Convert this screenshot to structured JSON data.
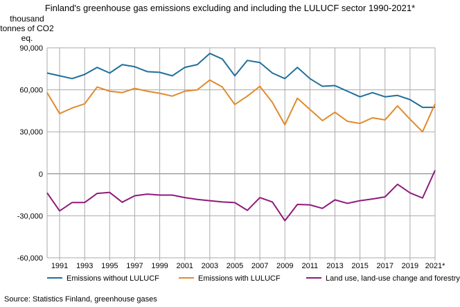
{
  "chart_data": {
    "type": "line",
    "title": "Finland's greenhouse gas emissions excluding and including the LULUCF sector 1990-2021*",
    "ylabel": "thousand tonnes of CO2 eq.",
    "xlabel": "",
    "source": "Source: Statistics Finland, greenhouse gases",
    "x": [
      1990,
      1991,
      1992,
      1993,
      1994,
      1995,
      1996,
      1997,
      1998,
      1999,
      2000,
      2001,
      2002,
      2003,
      2004,
      2005,
      2006,
      2007,
      2008,
      2009,
      2010,
      2011,
      2012,
      2013,
      2014,
      2015,
      2016,
      2017,
      2018,
      2019,
      2020,
      2021
    ],
    "x_tick_labels": [
      "1991",
      "1993",
      "1995",
      "1997",
      "1999",
      "2001",
      "2003",
      "2005",
      "2007",
      "2009",
      "2011",
      "2013",
      "2015",
      "2017",
      "2019",
      "2021*"
    ],
    "y_ticks": [
      90000,
      60000,
      30000,
      0,
      -30000,
      -60000
    ],
    "y_tick_labels": [
      "90,000",
      "60,000",
      "30,000",
      "0",
      "-30,000",
      "-60,000"
    ],
    "ylim": [
      -60000,
      90000
    ],
    "grid": true,
    "legend_position": "bottom",
    "series": [
      {
        "name": "Emissions without LULUCF",
        "color": "#1f6f9a",
        "values": [
          72000,
          70000,
          68000,
          71000,
          76000,
          72000,
          78000,
          76500,
          73000,
          72500,
          70000,
          76000,
          78000,
          86000,
          82000,
          70000,
          81000,
          79500,
          72000,
          68000,
          76000,
          68000,
          62500,
          63000,
          59000,
          55000,
          58000,
          55000,
          56000,
          53000,
          47500,
          47500
        ]
      },
      {
        "name": "Emissions with LULUCF",
        "color": "#e08a2c",
        "values": [
          58000,
          43000,
          47000,
          50000,
          62000,
          59000,
          58000,
          61000,
          59000,
          57500,
          55500,
          59000,
          60000,
          67000,
          62000,
          49500,
          55500,
          62500,
          51000,
          35000,
          54000,
          46000,
          38000,
          44000,
          37500,
          36000,
          40000,
          38500,
          48500,
          39000,
          30000,
          50000
        ]
      },
      {
        "name": "Land use, land-use change and forestry (LULUCF)",
        "color": "#8e1a7c",
        "values": [
          -13600,
          -26500,
          -20500,
          -20500,
          -14000,
          -13300,
          -20300,
          -15700,
          -14500,
          -15200,
          -15200,
          -17000,
          -18300,
          -19200,
          -20100,
          -20600,
          -26100,
          -17000,
          -20100,
          -33500,
          -21900,
          -22200,
          -24700,
          -18600,
          -21100,
          -19200,
          -18000,
          -16500,
          -7500,
          -13600,
          -17300,
          2500
        ]
      }
    ]
  }
}
